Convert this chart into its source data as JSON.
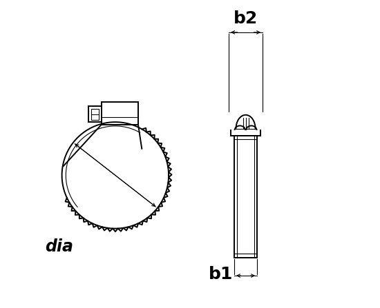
{
  "bg_color": "#ffffff",
  "line_color": "#000000",
  "fig_width": 5.5,
  "fig_height": 4.47,
  "dpi": 100,
  "label_dia": "dia",
  "label_b1": "b1",
  "label_b2": "b2"
}
